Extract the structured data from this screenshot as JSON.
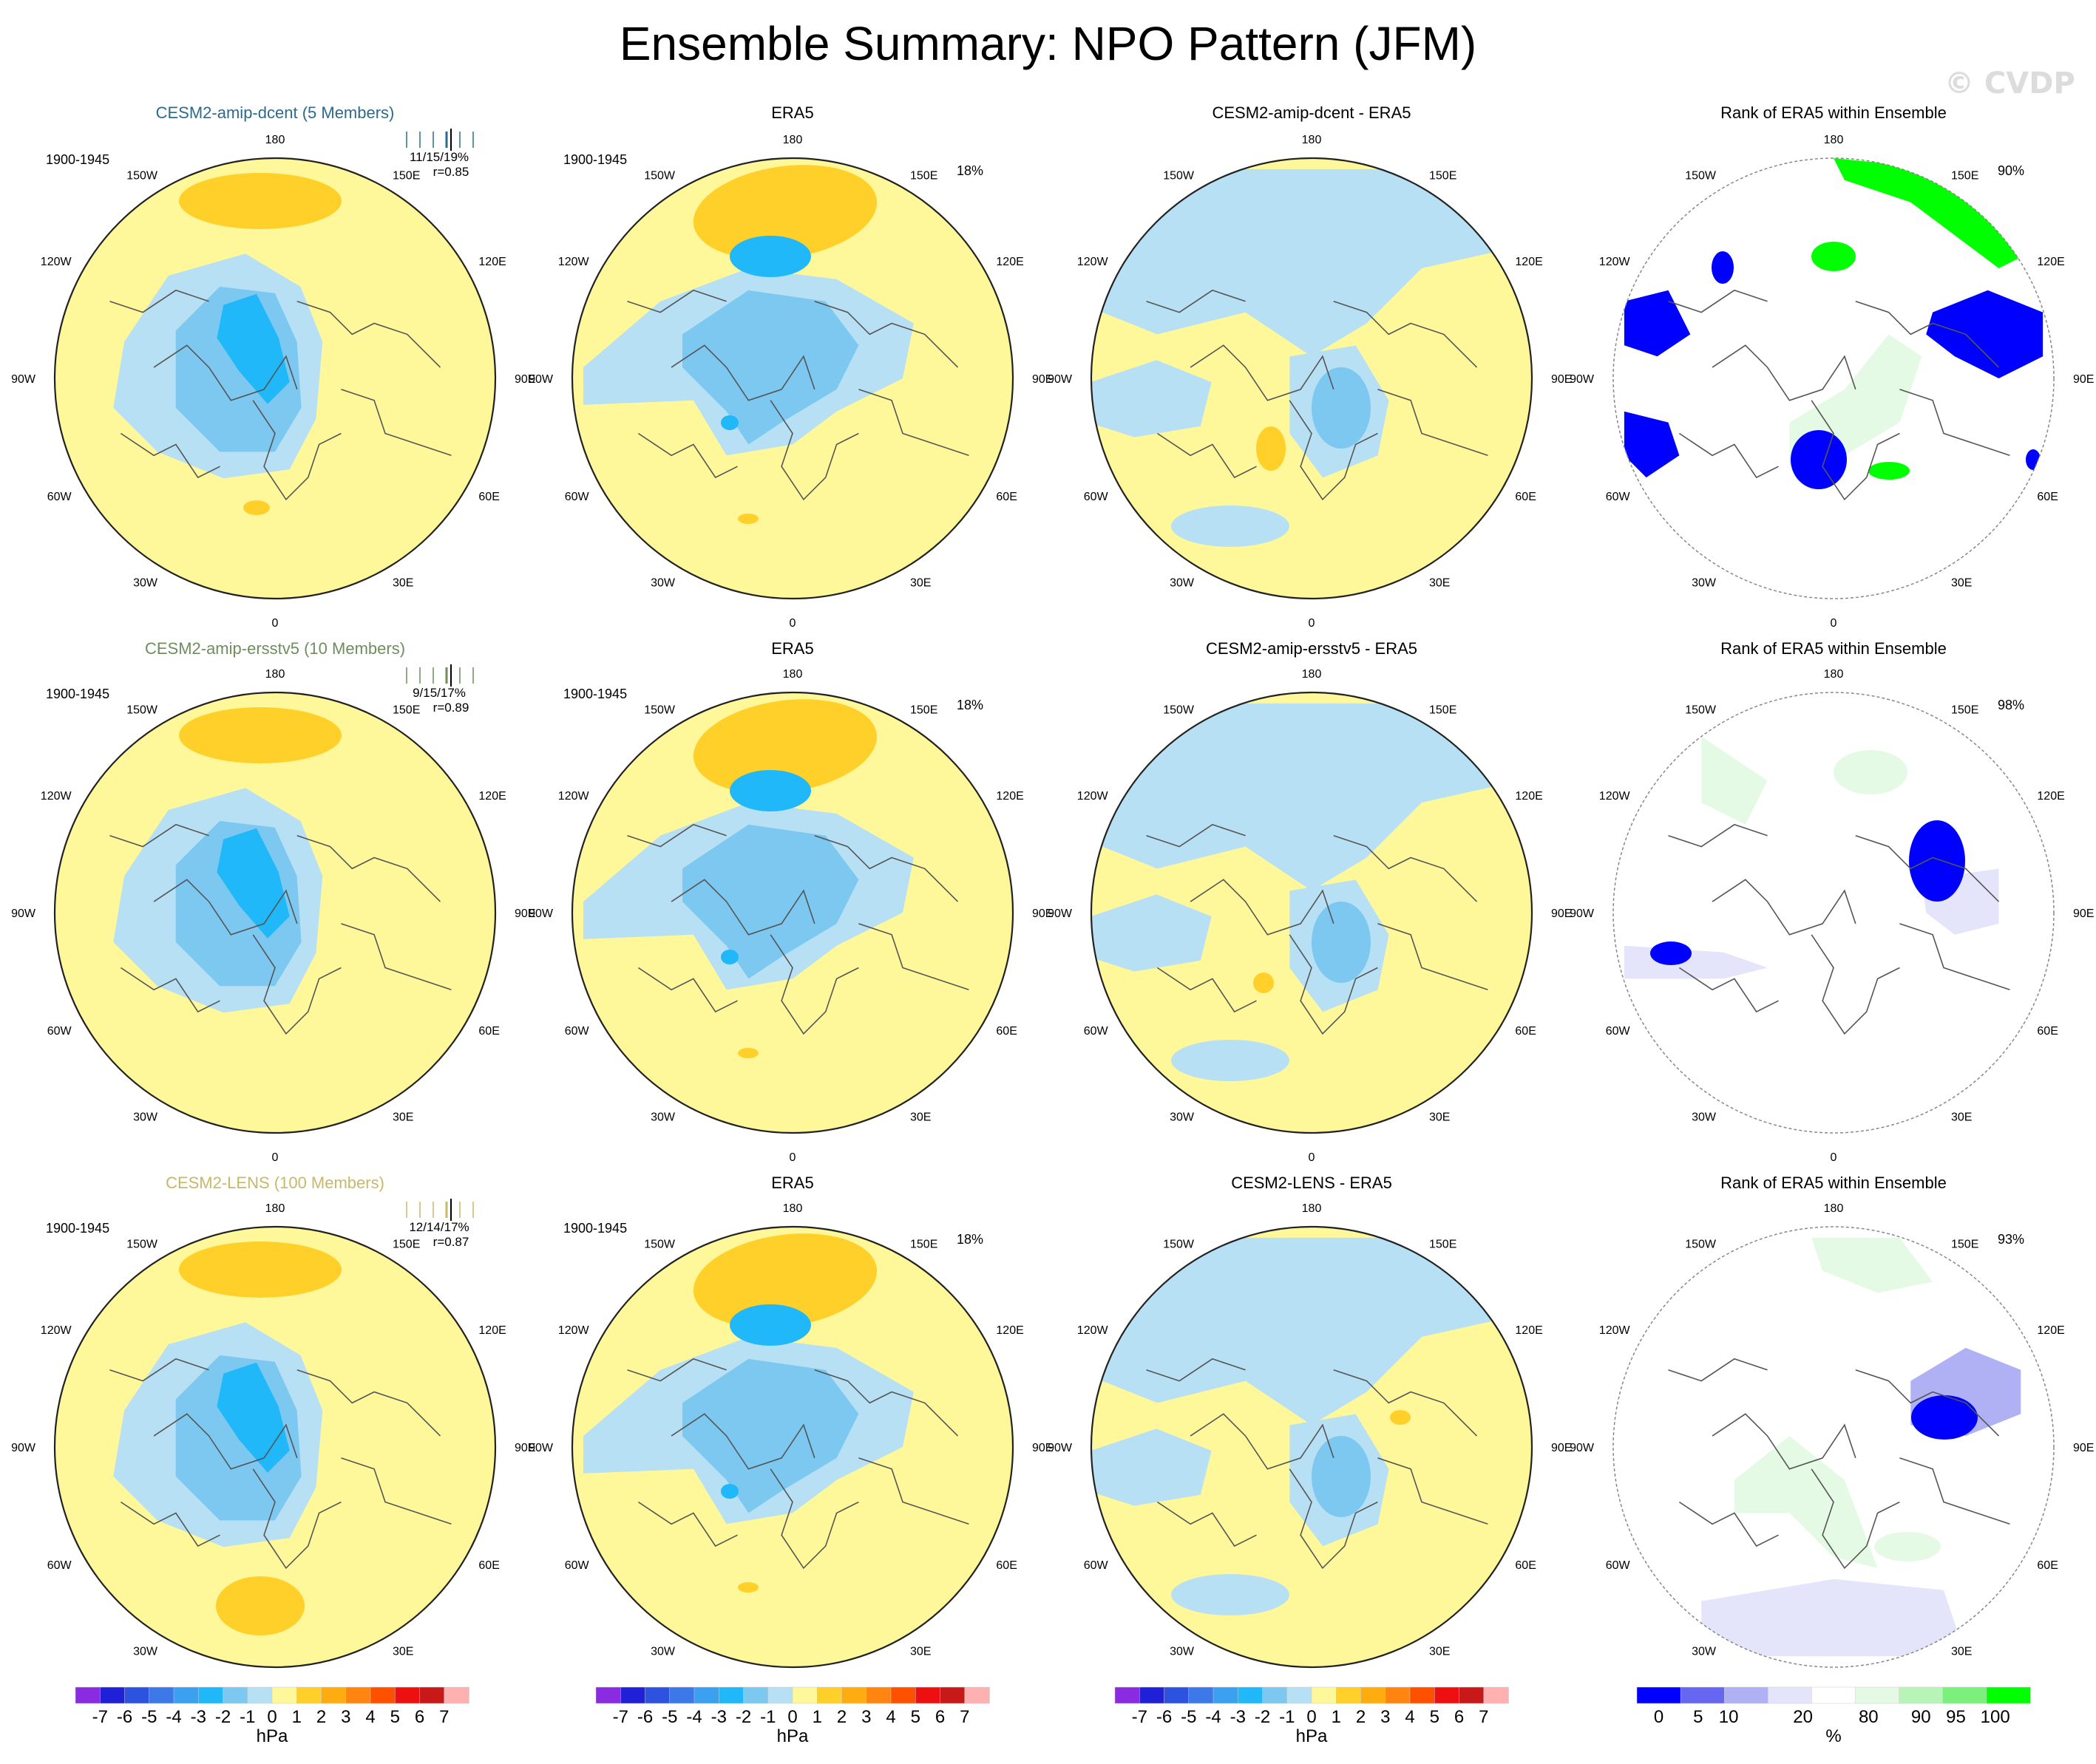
{
  "title": "Ensemble Summary: NPO Pattern (JFM)",
  "watermark": "© CVDP",
  "lon_labels": [
    "180",
    "150E",
    "120E",
    "90E",
    "60E",
    "30E",
    "0",
    "30W",
    "60W",
    "90W",
    "120W",
    "150W"
  ],
  "rows": [
    {
      "model": {
        "title": "CESM2-amip-dcent (5 Members)",
        "title_color": "#2c6b8a",
        "period": "1900-1945",
        "stats": "11/15/19%",
        "corr": "r=0.85"
      },
      "obs": {
        "title": "ERA5",
        "period": "1900-1945",
        "pct": "18%"
      },
      "diff": {
        "title": "CESM2-amip-dcent - ERA5"
      },
      "rank": {
        "title": "Rank of ERA5 within Ensemble",
        "pct": "90%"
      }
    },
    {
      "model": {
        "title": "CESM2-amip-ersstv5 (10 Members)",
        "title_color": "#6e8e5e",
        "period": "1900-1945",
        "stats": "9/15/17%",
        "corr": "r=0.89"
      },
      "obs": {
        "title": "ERA5",
        "period": "1900-1945",
        "pct": "18%"
      },
      "diff": {
        "title": "CESM2-amip-ersstv5 - ERA5"
      },
      "rank": {
        "title": "Rank of ERA5 within Ensemble",
        "pct": "98%"
      }
    },
    {
      "model": {
        "title": "CESM2-LENS (100 Members)",
        "title_color": "#c8b86a",
        "period": "1900-1945",
        "stats": "12/14/17%",
        "corr": "r=0.87"
      },
      "obs": {
        "title": "ERA5",
        "period": "1900-1945",
        "pct": "18%"
      },
      "diff": {
        "title": "CESM2-LENS - ERA5"
      },
      "rank": {
        "title": "Rank of ERA5 within Ensemble",
        "pct": "93%"
      }
    }
  ],
  "colorbar_hpa": {
    "unit": "hPa",
    "labels": [
      "-7",
      "-6",
      "-5",
      "-4",
      "-3",
      "-2",
      "-1",
      "0",
      "1",
      "2",
      "3",
      "4",
      "5",
      "6",
      "7"
    ],
    "colors": [
      "#8a2be2",
      "#2020d8",
      "#2e52e0",
      "#3c78e8",
      "#3ca0f0",
      "#20b8f8",
      "#7cc8f0",
      "#b8e0f4",
      "#fff89a",
      "#ffd02a",
      "#ffac10",
      "#ff8410",
      "#ff5000",
      "#ee1010",
      "#c81818",
      "#ffb0b0"
    ]
  },
  "colorbar_rank": {
    "unit": "%",
    "labels": [
      "0",
      "5",
      "10",
      "20",
      "80",
      "90",
      "95",
      "100"
    ],
    "colors": [
      "#0000ff",
      "#6666f0",
      "#b0b0f4",
      "#e4e4fa",
      "#ffffff",
      "#e4fae4",
      "#b8f4b8",
      "#7cf07c",
      "#00ff00"
    ]
  },
  "colors": {
    "yellow": "#fff89a",
    "orange": "#ffd02a",
    "light_blue": "#b8e0f4",
    "mid_blue": "#7cc8f0",
    "deep_blue": "#20b8f8",
    "rank_blue": "#0000ff",
    "rank_green": "#00ff00",
    "rank_pale_green": "#e4fae4",
    "rank_pale_blue": "#e4e4fa",
    "rank_lavender": "#b0b0f4"
  }
}
